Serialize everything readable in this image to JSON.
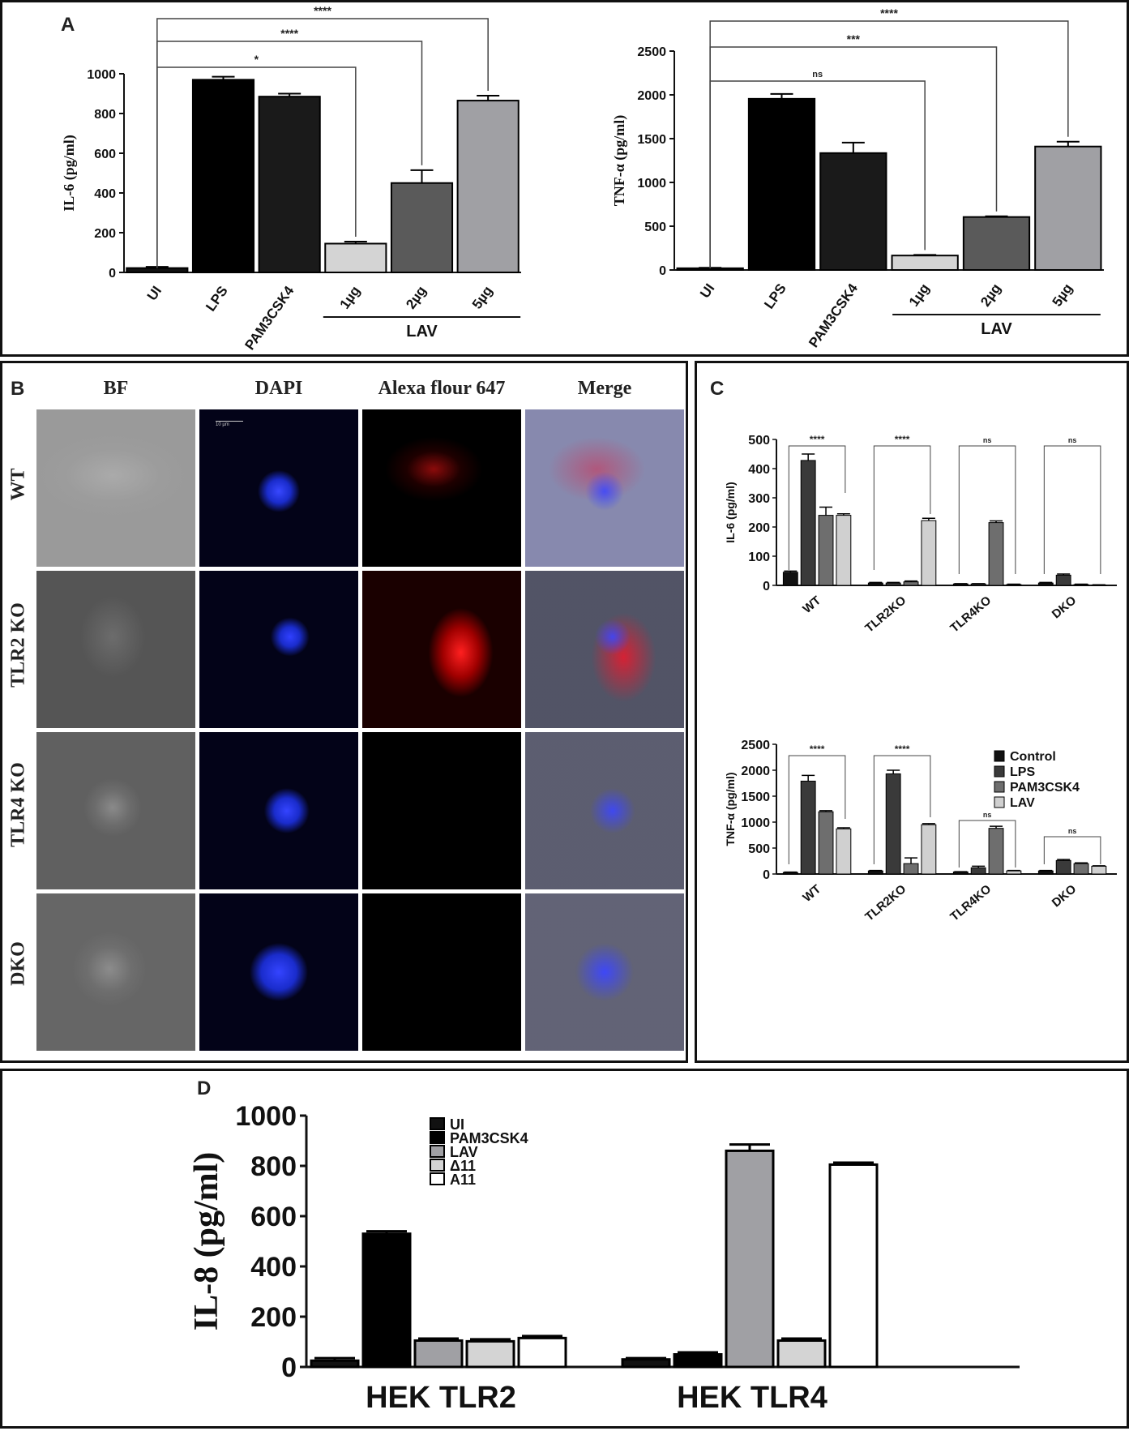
{
  "panel_labels": {
    "a": "A",
    "b": "B",
    "c": "C",
    "d": "D"
  },
  "panel_b": {
    "columns": [
      "BF",
      "DAPI",
      "Alexa flour 647",
      "Merge"
    ],
    "rows": [
      "WT",
      "TLR2 KO",
      "TLR4 KO",
      "DKO"
    ],
    "scale_text": "10 µm",
    "colors": {
      "dapi": "#1a2cff",
      "alexa": "#ff1a1a",
      "bf": "#9a9a9a"
    }
  },
  "chart_data": [
    {
      "id": "A-left",
      "type": "bar",
      "ylabel": "IL-6 (pg/ml)",
      "categories": [
        "UI",
        "LPS",
        "PAM3CSK4",
        "1µg",
        "2µg",
        "5µg"
      ],
      "values": [
        22,
        970,
        885,
        145,
        450,
        865
      ],
      "errors": [
        6,
        15,
        15,
        10,
        65,
        25
      ],
      "colors": [
        "#111111",
        "#000000",
        "#1a1a1a",
        "#d4d4d4",
        "#5a5a5a",
        "#a0a0a4"
      ],
      "ylim": [
        0,
        1000
      ],
      "yticks": [
        0,
        200,
        400,
        600,
        800,
        1000
      ],
      "group_label": "LAV",
      "significance": [
        "*",
        "****",
        "****"
      ]
    },
    {
      "id": "A-right",
      "type": "bar",
      "ylabel": "TNF-α (pg/ml)",
      "categories": [
        "UI",
        "LPS",
        "PAM3CSK4",
        "1µg",
        "2µg",
        "5µg"
      ],
      "values": [
        20,
        1955,
        1335,
        165,
        605,
        1410
      ],
      "errors": [
        5,
        55,
        120,
        8,
        8,
        55
      ],
      "colors": [
        "#111111",
        "#000000",
        "#1a1a1a",
        "#d4d4d4",
        "#5a5a5a",
        "#a0a0a4"
      ],
      "ylim": [
        0,
        2500
      ],
      "yticks": [
        0,
        500,
        1000,
        1500,
        2000,
        2500
      ],
      "group_label": "LAV",
      "significance": [
        "ns",
        "***",
        "****"
      ]
    },
    {
      "id": "C-top",
      "type": "bar",
      "ylabel": "IL-6 (pg/ml)",
      "categories": [
        "WT",
        "TLR2KO",
        "TLR4KO",
        "DKO"
      ],
      "series": [
        {
          "values": [
            45,
            8,
            5,
            8
          ],
          "errors": [
            4,
            2,
            1,
            2
          ]
        },
        {
          "values": [
            428,
            8,
            5,
            35
          ],
          "errors": [
            22,
            2,
            1,
            4
          ]
        },
        {
          "values": [
            240,
            12,
            215,
            3
          ],
          "errors": [
            28,
            3,
            6,
            1
          ]
        },
        {
          "values": [
            240,
            222,
            3,
            1
          ],
          "errors": [
            5,
            8,
            1,
            1
          ]
        }
      ],
      "series_colors": [
        "#111111",
        "#3a3a3a",
        "#6e6e6e",
        "#d0d0d0"
      ],
      "ylim": [
        0,
        500
      ],
      "yticks": [
        0,
        100,
        200,
        300,
        400,
        500
      ],
      "significance": [
        "****",
        "****",
        "ns",
        "ns"
      ]
    },
    {
      "id": "C-bottom",
      "type": "bar",
      "ylabel": "TNF-α (pg/ml)",
      "categories": [
        "WT",
        "TLR2KO",
        "TLR4KO",
        "DKO"
      ],
      "series": [
        {
          "name": "Control",
          "values": [
            30,
            60,
            40,
            60
          ],
          "errors": [
            8,
            8,
            5,
            8
          ]
        },
        {
          "name": "LPS",
          "values": [
            1790,
            1930,
            120,
            260
          ],
          "errors": [
            110,
            70,
            30,
            20
          ]
        },
        {
          "name": "PAM3CSK4",
          "values": [
            1200,
            200,
            880,
            200
          ],
          "errors": [
            20,
            110,
            40,
            15
          ]
        },
        {
          "name": "LAV",
          "values": [
            870,
            950,
            60,
            150
          ],
          "errors": [
            20,
            20,
            8,
            8
          ]
        }
      ],
      "series_colors": [
        "#111111",
        "#3a3a3a",
        "#6e6e6e",
        "#d0d0d0"
      ],
      "ylim": [
        0,
        2500
      ],
      "yticks": [
        0,
        500,
        1000,
        1500,
        2000,
        2500
      ],
      "significance": [
        "****",
        "****",
        "ns",
        "ns"
      ],
      "legend_position": "right"
    },
    {
      "id": "D",
      "type": "bar",
      "ylabel": "IL-8 (pg/ml)",
      "categories": [
        "HEK TLR2",
        "HEK TLR4"
      ],
      "series": [
        {
          "name": "UI",
          "values": [
            25,
            30
          ],
          "errors": [
            10,
            5
          ]
        },
        {
          "name": "PAM3CSK4",
          "values": [
            530,
            50
          ],
          "errors": [
            10,
            8
          ]
        },
        {
          "name": "LAV",
          "values": [
            105,
            860
          ],
          "errors": [
            8,
            25
          ]
        },
        {
          "name": "Δ11",
          "values": [
            102,
            105
          ],
          "errors": [
            8,
            8
          ]
        },
        {
          "name": "A11",
          "values": [
            115,
            805
          ],
          "errors": [
            8,
            8
          ]
        }
      ],
      "series_colors": [
        "#111111",
        "#000000",
        "#a0a0a4",
        "#d4d4d4",
        "#ffffff"
      ],
      "ylim": [
        0,
        1000
      ],
      "yticks": [
        0,
        200,
        400,
        600,
        800,
        1000
      ],
      "legend_position": "top-center"
    }
  ]
}
